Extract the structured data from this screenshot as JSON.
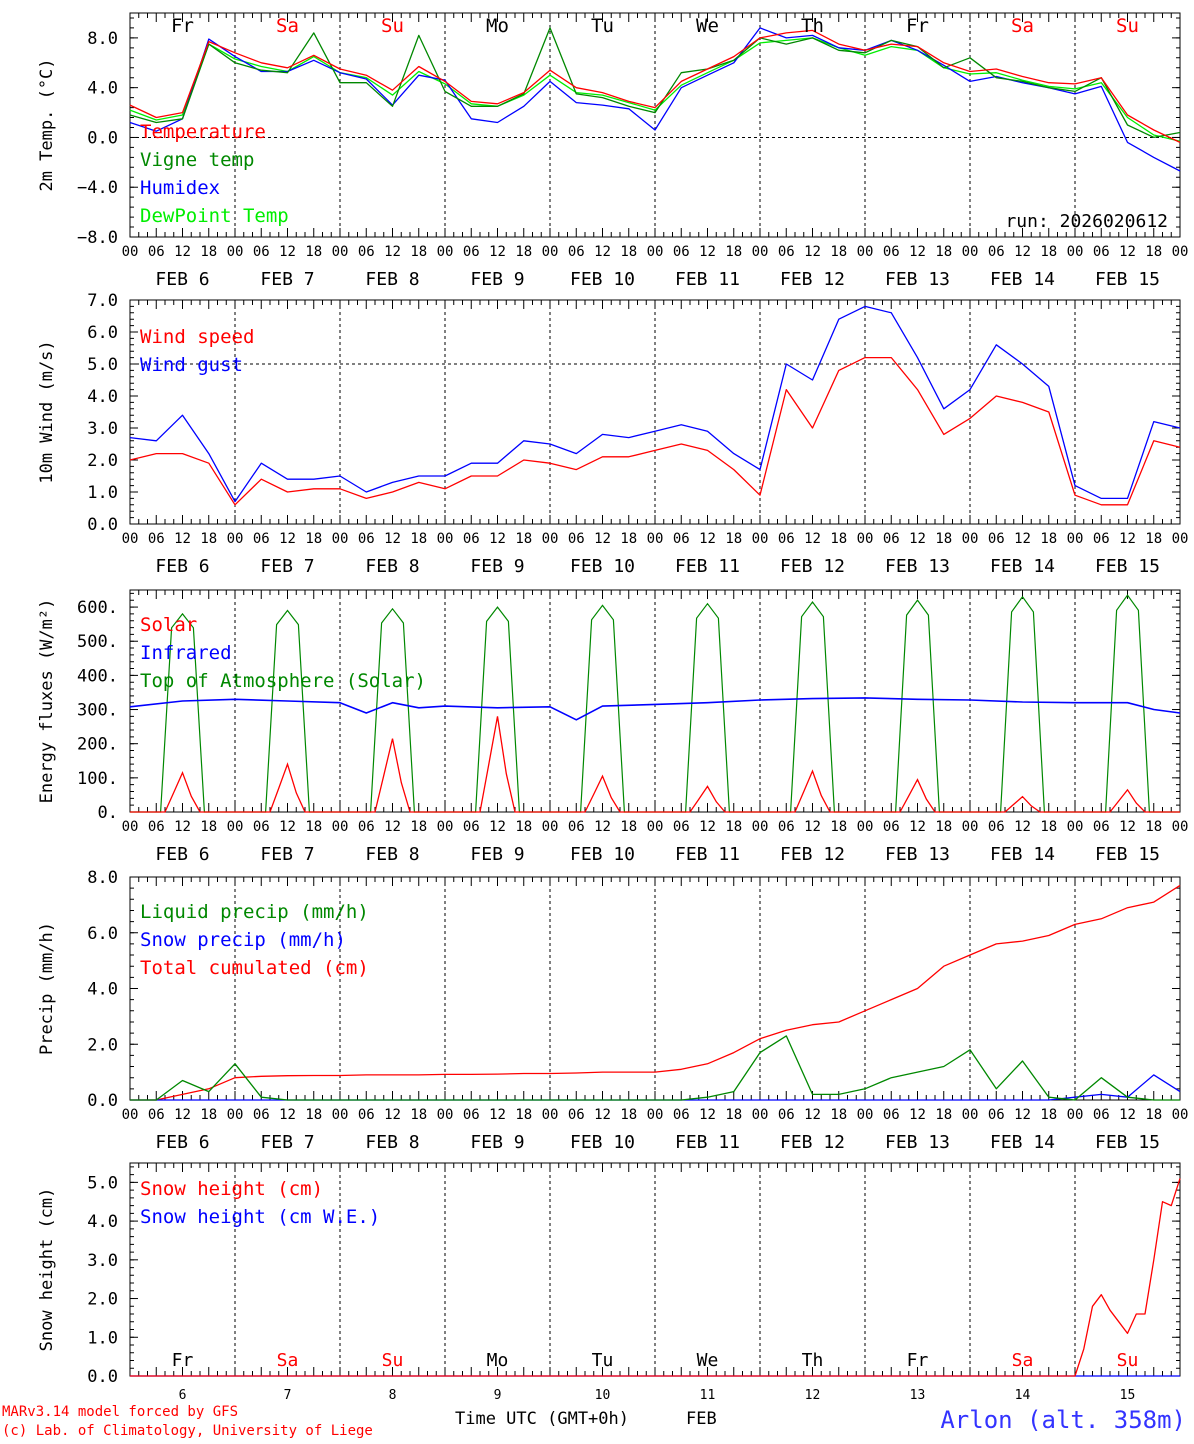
{
  "chart_data": [
    {
      "type": "line",
      "ylabel": "2m Temp. (°C)",
      "ylim": [
        -8,
        10
      ],
      "yticks": [
        -8.0,
        -4.0,
        0.0,
        4.0,
        8.0
      ],
      "ytick_labels": [
        "−8.0",
        "−4.0",
        "0.0",
        "4.0",
        "8.0"
      ],
      "hline": 0,
      "run_label": "run: 2026020612",
      "day_labels": [
        "Fr",
        "Sa",
        "Su",
        "Mo",
        "Tu",
        "We",
        "Th",
        "Fr",
        "Sa",
        "Su"
      ],
      "weekend_flags": [
        false,
        true,
        true,
        false,
        false,
        false,
        false,
        false,
        true,
        true
      ],
      "x": [
        0,
        6,
        12,
        18,
        24,
        30,
        36,
        42,
        48,
        54,
        60,
        66,
        72,
        78,
        84,
        90,
        96,
        102,
        108,
        114,
        120,
        126,
        132,
        138,
        144,
        150,
        156,
        162,
        168,
        174,
        180,
        186,
        192,
        198,
        204,
        210,
        216,
        222,
        228,
        234,
        240
      ],
      "series": [
        {
          "name": "Temperature",
          "color": "#ff0000",
          "values": [
            2.6,
            1.6,
            2.0,
            7.7,
            6.8,
            6.0,
            5.6,
            6.6,
            5.5,
            5.0,
            3.8,
            5.7,
            4.5,
            2.9,
            2.7,
            3.6,
            5.4,
            4.0,
            3.6,
            2.9,
            2.4,
            4.5,
            5.5,
            6.5,
            8.0,
            8.4,
            8.6,
            7.5,
            7.0,
            7.5,
            7.3,
            6.0,
            5.3,
            5.5,
            4.9,
            4.4,
            4.3,
            4.8,
            1.8,
            0.6,
            -0.4
          ]
        },
        {
          "name": "Vigne temp",
          "color": "#008800",
          "values": [
            1.8,
            1.2,
            1.5,
            7.5,
            6.0,
            5.4,
            5.2,
            8.4,
            4.4,
            4.4,
            2.5,
            8.2,
            3.7,
            2.5,
            2.5,
            3.5,
            8.8,
            3.5,
            3.2,
            2.5,
            2.0,
            5.2,
            5.5,
            6.2,
            8.0,
            7.5,
            8.0,
            7.0,
            6.8,
            7.8,
            7.3,
            5.6,
            6.4,
            4.8,
            4.5,
            4.0,
            3.7,
            4.8,
            1.0,
            0.0,
            0.4
          ]
        },
        {
          "name": "Humidex",
          "color": "#0000ff",
          "values": [
            1.2,
            0.5,
            1.5,
            7.9,
            6.5,
            5.3,
            5.3,
            6.2,
            5.2,
            4.7,
            2.6,
            5.0,
            4.6,
            1.5,
            1.2,
            2.5,
            4.5,
            2.8,
            2.6,
            2.3,
            0.6,
            4.0,
            5.0,
            6.0,
            8.8,
            8.0,
            8.2,
            7.2,
            7.0,
            7.8,
            7.0,
            5.8,
            4.5,
            4.9,
            4.4,
            4.0,
            3.5,
            4.1,
            -0.4,
            -1.6,
            -2.7
          ]
        },
        {
          "name": "DewPoint Temp",
          "color": "#00ee00",
          "values": [
            2.2,
            1.4,
            1.8,
            7.5,
            6.3,
            5.7,
            5.3,
            6.5,
            5.2,
            4.8,
            3.4,
            5.3,
            4.3,
            2.7,
            2.5,
            3.4,
            5.0,
            3.6,
            3.4,
            2.8,
            2.2,
            4.2,
            5.2,
            6.2,
            7.6,
            7.8,
            8.0,
            7.2,
            6.6,
            7.3,
            7.0,
            5.6,
            5.1,
            5.2,
            4.6,
            4.1,
            3.9,
            4.4,
            1.6,
            0.2,
            -0.3
          ]
        }
      ]
    },
    {
      "type": "line",
      "ylabel": "10m Wind (m/s)",
      "ylim": [
        0,
        7
      ],
      "yticks": [
        0,
        1,
        2,
        3,
        4,
        5,
        6,
        7
      ],
      "ytick_labels": [
        "0.0",
        "1.0",
        "2.0",
        "3.0",
        "4.0",
        "5.0",
        "6.0",
        "7.0"
      ],
      "hline": 5,
      "x": [
        0,
        6,
        12,
        18,
        24,
        30,
        36,
        42,
        48,
        54,
        60,
        66,
        72,
        78,
        84,
        90,
        96,
        102,
        108,
        114,
        120,
        126,
        132,
        138,
        144,
        150,
        156,
        162,
        168,
        174,
        180,
        186,
        192,
        198,
        204,
        210,
        216,
        222,
        228,
        234,
        240
      ],
      "series": [
        {
          "name": "Wind speed",
          "color": "#ff0000",
          "values": [
            2.0,
            2.2,
            2.2,
            1.9,
            0.6,
            1.4,
            1.0,
            1.1,
            1.1,
            0.8,
            1.0,
            1.3,
            1.1,
            1.5,
            1.5,
            2.0,
            1.9,
            1.7,
            2.1,
            2.1,
            2.3,
            2.5,
            2.3,
            1.7,
            0.9,
            4.2,
            3.0,
            4.8,
            5.2,
            5.2,
            4.2,
            2.8,
            3.3,
            4.0,
            3.8,
            3.5,
            0.9,
            0.6,
            0.6,
            2.6,
            2.4
          ]
        },
        {
          "name": "Wind gust",
          "color": "#0000ff",
          "values": [
            2.7,
            2.6,
            3.4,
            2.2,
            0.7,
            1.9,
            1.4,
            1.4,
            1.5,
            1.0,
            1.3,
            1.5,
            1.5,
            1.9,
            1.9,
            2.6,
            2.5,
            2.2,
            2.8,
            2.7,
            2.9,
            3.1,
            2.9,
            2.2,
            1.7,
            5.0,
            4.5,
            6.4,
            6.8,
            6.6,
            5.2,
            3.6,
            4.2,
            5.6,
            5.0,
            4.3,
            1.2,
            0.8,
            0.8,
            3.2,
            3.0
          ]
        }
      ]
    },
    {
      "type": "line",
      "ylabel": "Energy fluxes (W/m²)",
      "ylim": [
        0,
        650
      ],
      "yticks": [
        0,
        100,
        200,
        300,
        400,
        500,
        600
      ],
      "ytick_labels": [
        "0.",
        "100.",
        "200.",
        "300.",
        "400.",
        "500.",
        "600."
      ],
      "solar_peaks": [
        115,
        140,
        215,
        280,
        105,
        75,
        120,
        95,
        45,
        65
      ],
      "toa_peaks": [
        580,
        590,
        595,
        600,
        605,
        610,
        615,
        620,
        630,
        635
      ],
      "infrared_x": [
        0,
        12,
        24,
        36,
        48,
        54,
        60,
        66,
        72,
        84,
        96,
        102,
        108,
        120,
        132,
        144,
        156,
        168,
        180,
        192,
        204,
        216,
        228,
        234,
        240
      ],
      "infrared": [
        308,
        325,
        330,
        325,
        320,
        290,
        320,
        305,
        310,
        305,
        308,
        270,
        310,
        315,
        320,
        328,
        332,
        334,
        330,
        328,
        322,
        320,
        320,
        300,
        290
      ],
      "series_names": [
        "Solar",
        "Infrared",
        "Top of Atmosphere (Solar)"
      ],
      "colors": {
        "solar": "#ff0000",
        "infrared": "#0000ff",
        "toa": "#008800"
      }
    },
    {
      "type": "line",
      "ylabel": "Precip (mm/h)",
      "ylim": [
        0,
        8
      ],
      "yticks": [
        0,
        2,
        4,
        6,
        8
      ],
      "ytick_labels": [
        "0.0",
        "2.0",
        "4.0",
        "6.0",
        "8.0"
      ],
      "x": [
        0,
        6,
        12,
        18,
        24,
        30,
        36,
        42,
        48,
        54,
        60,
        66,
        72,
        78,
        84,
        90,
        96,
        102,
        108,
        114,
        120,
        126,
        132,
        138,
        144,
        150,
        156,
        162,
        168,
        174,
        180,
        186,
        192,
        198,
        204,
        210,
        216,
        222,
        228,
        234,
        240
      ],
      "series": [
        {
          "name": "Liquid precip (mm/h)",
          "color": "#008800",
          "values": [
            0,
            0,
            0.7,
            0.3,
            1.3,
            0.1,
            0,
            0,
            0,
            0,
            0,
            0,
            0,
            0,
            0,
            0,
            0,
            0,
            0,
            0,
            0,
            0,
            0.1,
            0.3,
            1.7,
            2.3,
            0.2,
            0.2,
            0.4,
            0.8,
            1.0,
            1.2,
            1.8,
            0.4,
            1.4,
            0.1,
            0,
            0.8,
            0.1,
            0,
            0
          ]
        },
        {
          "name": "Snow precip (mm/h)",
          "color": "#0000ff",
          "values": [
            0,
            0,
            0,
            0,
            0,
            0,
            0,
            0,
            0,
            0,
            0,
            0,
            0,
            0,
            0,
            0,
            0,
            0,
            0,
            0,
            0,
            0,
            0,
            0,
            0,
            0,
            0,
            0,
            0,
            0,
            0,
            0,
            0,
            0,
            0,
            0,
            0.1,
            0.2,
            0.1,
            0.9,
            0.3
          ]
        },
        {
          "name": "Total cumulated (cm)",
          "color": "#ff0000",
          "values": [
            0,
            0,
            0.2,
            0.4,
            0.8,
            0.85,
            0.87,
            0.88,
            0.88,
            0.9,
            0.9,
            0.9,
            0.92,
            0.92,
            0.93,
            0.95,
            0.95,
            0.97,
            1.0,
            1.0,
            1.0,
            1.1,
            1.3,
            1.7,
            2.2,
            2.5,
            2.7,
            2.8,
            3.2,
            3.6,
            4.0,
            4.8,
            5.2,
            5.6,
            5.7,
            5.9,
            6.3,
            6.5,
            6.9,
            7.1,
            7.7
          ]
        }
      ]
    },
    {
      "type": "line",
      "ylabel": "Snow height (cm)",
      "ylim": [
        0,
        5.5
      ],
      "yticks": [
        0,
        1,
        2,
        3,
        4,
        5
      ],
      "ytick_labels": [
        "0.0",
        "1.0",
        "2.0",
        "3.0",
        "4.0",
        "5.0"
      ],
      "x": [
        0,
        216,
        218,
        220,
        222,
        224,
        226,
        228,
        230,
        232,
        234,
        236,
        238,
        240
      ],
      "series": [
        {
          "name": "Snow height (cm)",
          "color": "#ff0000",
          "values": [
            0,
            0,
            0.7,
            1.8,
            2.1,
            1.7,
            1.4,
            1.1,
            1.6,
            1.6,
            3.0,
            4.5,
            4.4,
            5.1
          ]
        },
        {
          "name": "Snow height (cm W.E.)",
          "color": "#0000ff",
          "values": [
            0,
            0,
            0,
            0,
            0,
            0,
            0,
            0,
            0,
            0,
            0,
            0,
            0,
            0
          ]
        }
      ],
      "day_labels": [
        "Fr",
        "Sa",
        "Su",
        "Mo",
        "Tu",
        "We",
        "Th",
        "Fr",
        "Sa",
        "Su"
      ],
      "day_numbers": [
        "6",
        "7",
        "8",
        "9",
        "10",
        "11",
        "12",
        "13",
        "14",
        "15"
      ]
    }
  ],
  "x_axis": {
    "hour_labels": [
      "00",
      "06",
      "12",
      "18"
    ],
    "date_labels": [
      "FEB  6",
      "FEB  7",
      "FEB  8",
      "FEB  9",
      "FEB 10",
      "FEB 11",
      "FEB 12",
      "FEB 13",
      "FEB 14",
      "FEB 15"
    ],
    "bottom_label": "Time UTC (GMT+0h)",
    "bottom_month": "FEB"
  },
  "footer": {
    "credit_line1": "MARv3.14 model forced by GFS",
    "credit_line2": "(c) Lab. of Climatology, University of Liege",
    "station": "Arlon (alt. 358m)"
  },
  "colors": {
    "weekend": "#ff0000",
    "weekday": "#000000",
    "station": "#3333ff"
  }
}
